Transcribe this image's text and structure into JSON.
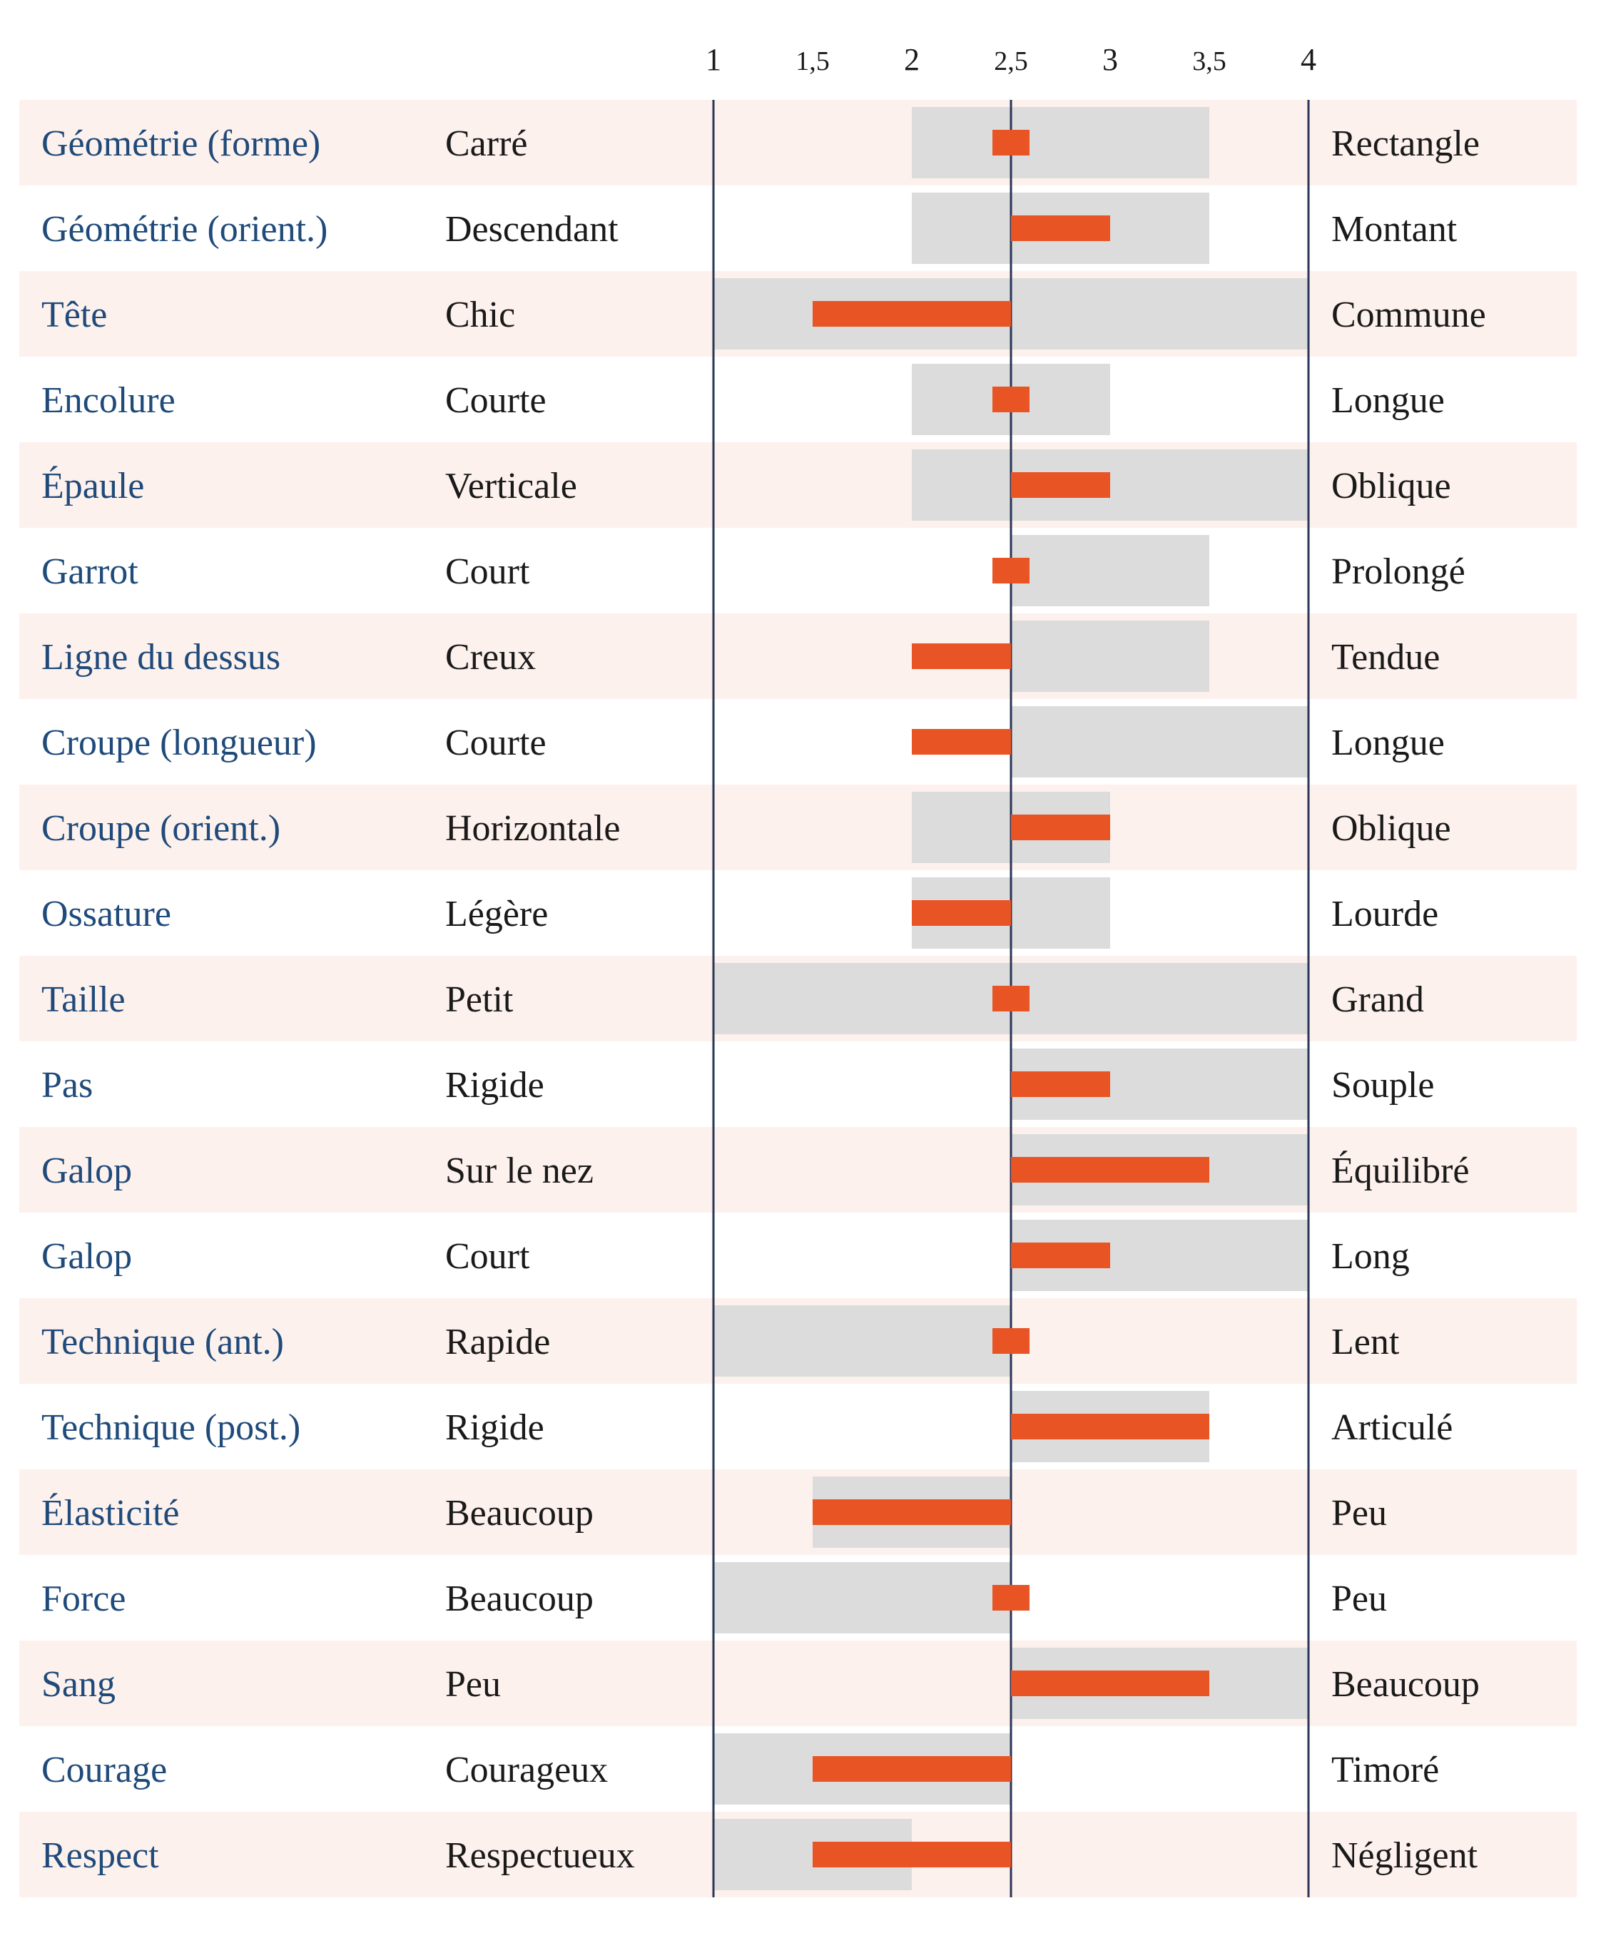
{
  "colors": {
    "row_band": "#fdf1ed",
    "range_bar": "#dcdcdc",
    "value_bar": "#e85424",
    "axis_line": "#2a3558",
    "criterion_text": "#1f4a7a",
    "pole_text": "#1a1a1a"
  },
  "chart_data": {
    "type": "bar",
    "orientation": "horizontal",
    "baseline": 2.5,
    "xlim": [
      1,
      4
    ],
    "x_ticks": [
      1,
      1.5,
      2,
      2.5,
      3,
      3.5,
      4
    ],
    "x_tick_labels": [
      "1",
      "1,5",
      "2",
      "2,5",
      "3",
      "3,5",
      "4"
    ],
    "series": [
      {
        "name": "valeur",
        "description": "orange bar from baseline 2,5"
      },
      {
        "name": "plage",
        "description": "grey range bar [min, max]"
      }
    ],
    "rows": [
      {
        "criterion": "Géométrie (forme)",
        "low": "Carré",
        "high": "Rectangle",
        "value": 2.5,
        "range": [
          2,
          3.5
        ]
      },
      {
        "criterion": "Géométrie (orient.)",
        "low": "Descendant",
        "high": "Montant",
        "value": 3,
        "range": [
          2,
          3.5
        ]
      },
      {
        "criterion": "Tête",
        "low": "Chic",
        "high": "Commune",
        "value": 1.5,
        "range": [
          1,
          4
        ]
      },
      {
        "criterion": "Encolure",
        "low": "Courte",
        "high": "Longue",
        "value": 2.5,
        "range": [
          2,
          3
        ]
      },
      {
        "criterion": "Épaule",
        "low": "Verticale",
        "high": "Oblique",
        "value": 3,
        "range": [
          2,
          4
        ]
      },
      {
        "criterion": "Garrot",
        "low": "Court",
        "high": "Prolongé",
        "value": 2.5,
        "range": [
          2.5,
          3.5
        ]
      },
      {
        "criterion": "Ligne du dessus",
        "low": "Creux",
        "high": "Tendue",
        "value": 2,
        "range": [
          2.5,
          3.5
        ]
      },
      {
        "criterion": "Croupe (longueur)",
        "low": "Courte",
        "high": "Longue",
        "value": 2,
        "range": [
          2.5,
          4
        ]
      },
      {
        "criterion": "Croupe (orient.)",
        "low": "Horizontale",
        "high": "Oblique",
        "value": 3,
        "range": [
          2,
          3
        ]
      },
      {
        "criterion": "Ossature",
        "low": "Légère",
        "high": "Lourde",
        "value": 2,
        "range": [
          2,
          3
        ]
      },
      {
        "criterion": "Taille",
        "low": "Petit",
        "high": "Grand",
        "value": 2.5,
        "range": [
          1,
          4
        ]
      },
      {
        "criterion": "Pas",
        "low": "Rigide",
        "high": "Souple",
        "value": 3,
        "range": [
          2.5,
          4
        ]
      },
      {
        "criterion": "Galop",
        "low": "Sur le nez",
        "high": "Équilibré",
        "value": 3.5,
        "range": [
          2.5,
          4
        ]
      },
      {
        "criterion": "Galop",
        "low": "Court",
        "high": "Long",
        "value": 3,
        "range": [
          2.5,
          4
        ]
      },
      {
        "criterion": "Technique (ant.)",
        "low": "Rapide",
        "high": "Lent",
        "value": 2.5,
        "range": [
          1,
          2.5
        ]
      },
      {
        "criterion": "Technique (post.)",
        "low": "Rigide",
        "high": "Articulé",
        "value": 3.5,
        "range": [
          2.5,
          3.5
        ]
      },
      {
        "criterion": "Élasticité",
        "low": "Beaucoup",
        "high": "Peu",
        "value": 1.5,
        "range": [
          1.5,
          2.5
        ]
      },
      {
        "criterion": "Force",
        "low": "Beaucoup",
        "high": "Peu",
        "value": 2.5,
        "range": [
          1,
          2.5
        ]
      },
      {
        "criterion": "Sang",
        "low": "Peu",
        "high": "Beaucoup",
        "value": 3.5,
        "range": [
          2.5,
          4
        ]
      },
      {
        "criterion": "Courage",
        "low": "Courageux",
        "high": "Timoré",
        "value": 1.5,
        "range": [
          1,
          2.5
        ]
      },
      {
        "criterion": "Respect",
        "low": "Respectueux",
        "high": "Négligent",
        "value": 1.5,
        "range": [
          1,
          2
        ]
      }
    ]
  }
}
